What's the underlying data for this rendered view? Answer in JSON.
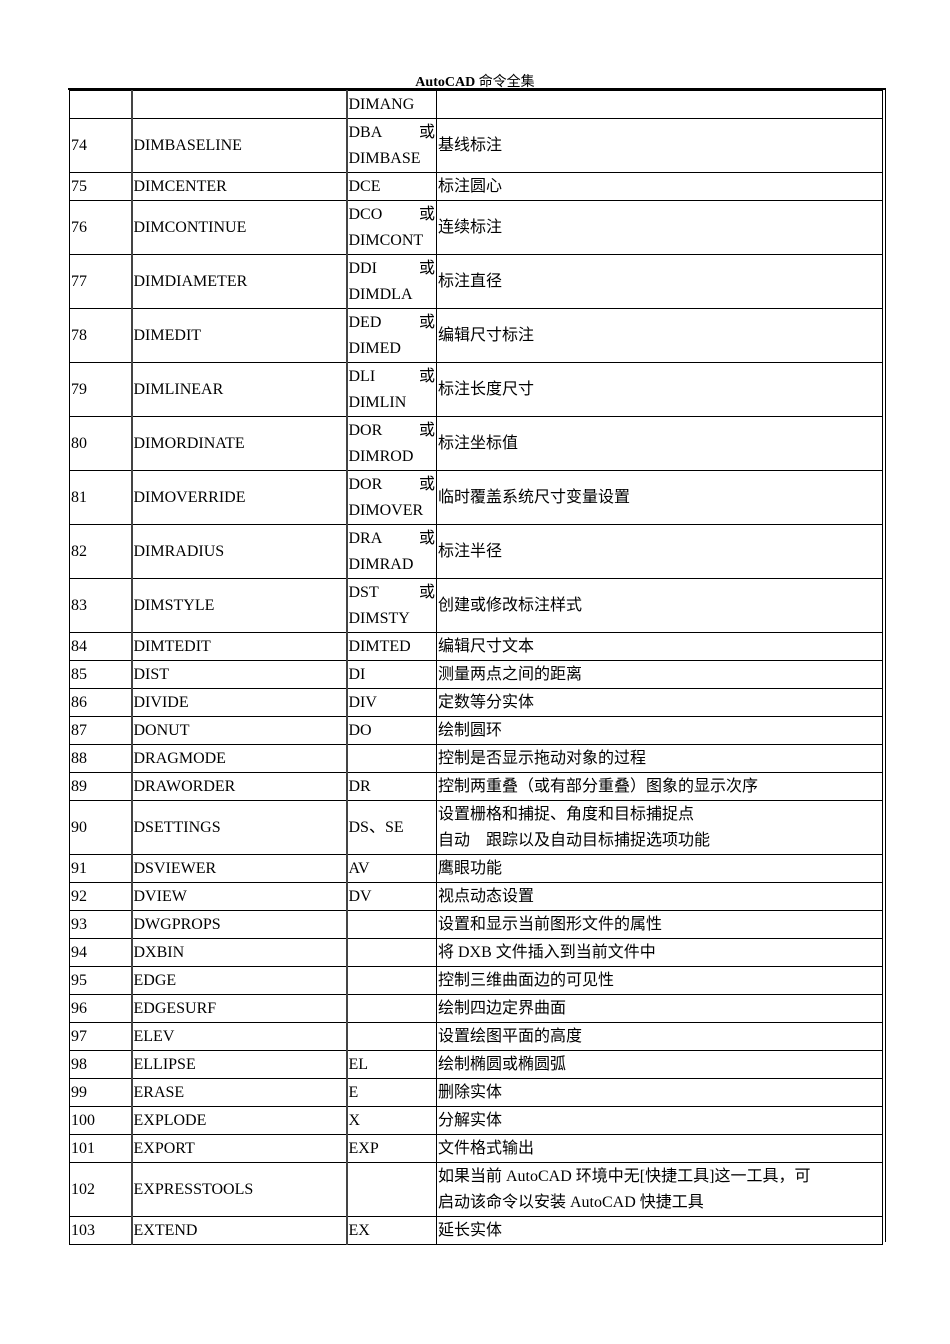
{
  "header": {
    "title_latin": "AutoCAD",
    "title_cn": "命令全集"
  },
  "rows": [
    {
      "num": "",
      "cmd": "",
      "abbr": [
        "DIMANG"
      ],
      "desc": [
        ""
      ]
    },
    {
      "num": "74",
      "cmd": "DIMBASELINE",
      "abbr": [
        "DBA 或",
        "DIMBASE"
      ],
      "desc": [
        "基线标注"
      ]
    },
    {
      "num": "75",
      "cmd": "DIMCENTER",
      "abbr": [
        "DCE"
      ],
      "desc": [
        "标注圆心"
      ]
    },
    {
      "num": "76",
      "cmd": "DIMCONTINUE",
      "abbr": [
        "DCO 或",
        "DIMCONT"
      ],
      "desc": [
        "连续标注"
      ]
    },
    {
      "num": "77",
      "cmd": "DIMDIAMETER",
      "abbr": [
        "DDI 或",
        "DIMDLA"
      ],
      "desc": [
        "标注直径"
      ]
    },
    {
      "num": "78",
      "cmd": "DIMEDIT",
      "abbr": [
        "DED 或",
        "DIMED"
      ],
      "desc": [
        "编辑尺寸标注"
      ]
    },
    {
      "num": "79",
      "cmd": "DIMLINEAR",
      "abbr": [
        "DLI 或",
        "DIMLIN"
      ],
      "desc": [
        "标注长度尺寸"
      ]
    },
    {
      "num": "80",
      "cmd": "DIMORDINATE",
      "abbr": [
        "DOR 或",
        "DIMROD"
      ],
      "desc": [
        "标注坐标值"
      ]
    },
    {
      "num": "81",
      "cmd": "DIMOVERRIDE",
      "abbr": [
        "DOR 或",
        "DIMOVER"
      ],
      "desc": [
        "临时覆盖系统尺寸变量设置"
      ]
    },
    {
      "num": "82",
      "cmd": "DIMRADIUS",
      "abbr": [
        "DRA 或",
        "DIMRAD"
      ],
      "desc": [
        "标注半径"
      ]
    },
    {
      "num": "83",
      "cmd": "DIMSTYLE",
      "abbr": [
        "DST 或",
        "DIMSTY"
      ],
      "desc": [
        "创建或修改标注样式"
      ]
    },
    {
      "num": "84",
      "cmd": "DIMTEDIT",
      "abbr": [
        "DIMTED"
      ],
      "desc": [
        "编辑尺寸文本"
      ]
    },
    {
      "num": "85",
      "cmd": "DIST",
      "abbr": [
        "DI"
      ],
      "desc": [
        "测量两点之间的距离"
      ]
    },
    {
      "num": "86",
      "cmd": "DIVIDE",
      "abbr": [
        "DIV"
      ],
      "desc": [
        "定数等分实体"
      ]
    },
    {
      "num": "87",
      "cmd": "DONUT",
      "abbr": [
        "DO"
      ],
      "desc": [
        "绘制圆环"
      ]
    },
    {
      "num": "88",
      "cmd": "DRAGMODE",
      "abbr": [
        ""
      ],
      "desc": [
        "控制是否显示拖动对象的过程"
      ]
    },
    {
      "num": "89",
      "cmd": "DRAWORDER",
      "abbr": [
        "DR"
      ],
      "desc": [
        "控制两重叠（或有部分重叠）图象的显示次序"
      ]
    },
    {
      "num": "90",
      "cmd": "DSETTINGS",
      "abbr": [
        "DS、SE"
      ],
      "desc": [
        "设置栅格和捕捉、角度和目标捕捉点",
        "自动　跟踪以及自动目标捕捉选项功能"
      ]
    },
    {
      "num": "91",
      "cmd": "DSVIEWER",
      "abbr": [
        "AV"
      ],
      "desc": [
        "鹰眼功能"
      ]
    },
    {
      "num": "92",
      "cmd": "DVIEW",
      "abbr": [
        "DV"
      ],
      "desc": [
        "视点动态设置"
      ]
    },
    {
      "num": "93",
      "cmd": "DWGPROPS",
      "abbr": [
        ""
      ],
      "desc": [
        "设置和显示当前图形文件的属性"
      ]
    },
    {
      "num": "94",
      "cmd": "DXBIN",
      "abbr": [
        ""
      ],
      "desc": [
        "将 DXB 文件插入到当前文件中"
      ]
    },
    {
      "num": "95",
      "cmd": "EDGE",
      "abbr": [
        ""
      ],
      "desc": [
        "控制三维曲面边的可见性"
      ]
    },
    {
      "num": "96",
      "cmd": "EDGESURF",
      "abbr": [
        ""
      ],
      "desc": [
        "绘制四边定界曲面"
      ]
    },
    {
      "num": "97",
      "cmd": "ELEV",
      "abbr": [
        ""
      ],
      "desc": [
        "设置绘图平面的高度"
      ]
    },
    {
      "num": "98",
      "cmd": "ELLIPSE",
      "abbr": [
        "EL"
      ],
      "desc": [
        "绘制椭圆或椭圆弧"
      ]
    },
    {
      "num": "99",
      "cmd": "ERASE",
      "abbr": [
        "E"
      ],
      "desc": [
        "删除实体"
      ]
    },
    {
      "num": "100",
      "cmd": "EXPLODE",
      "abbr": [
        "X"
      ],
      "desc": [
        "分解实体"
      ]
    },
    {
      "num": "101",
      "cmd": "EXPORT",
      "abbr": [
        "EXP"
      ],
      "desc": [
        "文件格式输出"
      ]
    },
    {
      "num": "102",
      "cmd": "EXPRESSTOOLS",
      "abbr": [
        ""
      ],
      "desc": [
        "如果当前 AutoCAD 环境中无[快捷工具]这一工具，可",
        "启动该命令以安装 AutoCAD 快捷工具"
      ]
    },
    {
      "num": "103",
      "cmd": "EXTEND",
      "abbr": [
        "EX"
      ],
      "desc": [
        "延长实体"
      ]
    }
  ]
}
